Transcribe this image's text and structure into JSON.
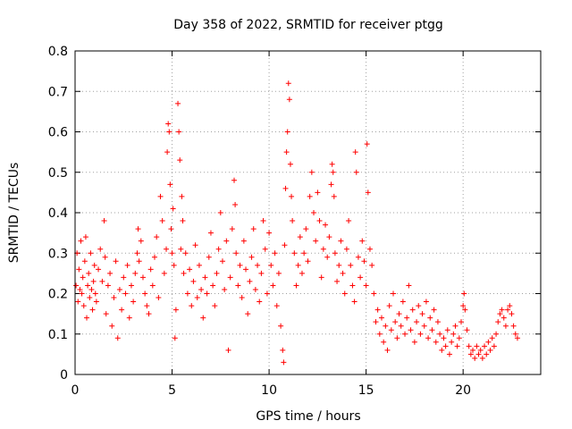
{
  "chart_data": {
    "type": "scatter",
    "title": "Day 358 of 2022, SRMTID for receiver ptgg",
    "xlabel": "GPS time / hours",
    "ylabel": "SRMTID / TECUs",
    "xlim": [
      0,
      24
    ],
    "ylim": [
      0,
      0.8
    ],
    "x_ticks": [
      {
        "value": 0,
        "label": "0"
      },
      {
        "value": 5,
        "label": "5"
      },
      {
        "value": 10,
        "label": "10"
      },
      {
        "value": 15,
        "label": "15"
      },
      {
        "value": 20,
        "label": "20"
      }
    ],
    "y_ticks": [
      {
        "value": 0,
        "label": "0"
      },
      {
        "value": 0.1,
        "label": "0.1"
      },
      {
        "value": 0.2,
        "label": "0.2"
      },
      {
        "value": 0.3,
        "label": "0.3"
      },
      {
        "value": 0.4,
        "label": "0.4"
      },
      {
        "value": 0.5,
        "label": "0.5"
      },
      {
        "value": 0.6,
        "label": "0.6"
      },
      {
        "value": 0.7,
        "label": "0.7"
      },
      {
        "value": 0.8,
        "label": "0.8"
      }
    ],
    "grid": true,
    "marker": "+",
    "series_color": "#ff0000",
    "series": [
      {
        "name": "SRMTID",
        "points": [
          [
            0.05,
            0.22
          ],
          [
            0.1,
            0.3
          ],
          [
            0.15,
            0.18
          ],
          [
            0.2,
            0.26
          ],
          [
            0.25,
            0.21
          ],
          [
            0.3,
            0.33
          ],
          [
            0.35,
            0.2
          ],
          [
            0.4,
            0.24
          ],
          [
            0.45,
            0.17
          ],
          [
            0.5,
            0.28
          ],
          [
            0.55,
            0.34
          ],
          [
            0.6,
            0.14
          ],
          [
            0.65,
            0.22
          ],
          [
            0.7,
            0.25
          ],
          [
            0.75,
            0.19
          ],
          [
            0.8,
            0.3
          ],
          [
            0.85,
            0.21
          ],
          [
            0.9,
            0.16
          ],
          [
            0.95,
            0.23
          ],
          [
            1.0,
            0.27
          ],
          [
            1.05,
            0.2
          ],
          [
            1.1,
            0.18
          ],
          [
            1.2,
            0.26
          ],
          [
            1.3,
            0.31
          ],
          [
            1.4,
            0.23
          ],
          [
            1.5,
            0.38
          ],
          [
            1.55,
            0.29
          ],
          [
            1.6,
            0.15
          ],
          [
            1.7,
            0.22
          ],
          [
            1.8,
            0.25
          ],
          [
            1.9,
            0.12
          ],
          [
            2.0,
            0.19
          ],
          [
            2.1,
            0.28
          ],
          [
            2.2,
            0.09
          ],
          [
            2.3,
            0.21
          ],
          [
            2.4,
            0.16
          ],
          [
            2.5,
            0.24
          ],
          [
            2.6,
            0.2
          ],
          [
            2.7,
            0.27
          ],
          [
            2.8,
            0.14
          ],
          [
            2.9,
            0.22
          ],
          [
            3.0,
            0.18
          ],
          [
            3.1,
            0.25
          ],
          [
            3.2,
            0.3
          ],
          [
            3.25,
            0.36
          ],
          [
            3.3,
            0.28
          ],
          [
            3.4,
            0.33
          ],
          [
            3.5,
            0.24
          ],
          [
            3.6,
            0.2
          ],
          [
            3.7,
            0.17
          ],
          [
            3.8,
            0.15
          ],
          [
            3.9,
            0.26
          ],
          [
            4.0,
            0.22
          ],
          [
            4.1,
            0.29
          ],
          [
            4.2,
            0.34
          ],
          [
            4.3,
            0.19
          ],
          [
            4.4,
            0.44
          ],
          [
            4.5,
            0.38
          ],
          [
            4.6,
            0.25
          ],
          [
            4.7,
            0.31
          ],
          [
            4.75,
            0.55
          ],
          [
            4.8,
            0.62
          ],
          [
            4.85,
            0.6
          ],
          [
            4.9,
            0.47
          ],
          [
            4.95,
            0.36
          ],
          [
            5.0,
            0.3
          ],
          [
            5.05,
            0.41
          ],
          [
            5.1,
            0.27
          ],
          [
            5.15,
            0.09
          ],
          [
            5.2,
            0.16
          ],
          [
            5.3,
            0.67
          ],
          [
            5.35,
            0.6
          ],
          [
            5.4,
            0.53
          ],
          [
            5.45,
            0.31
          ],
          [
            5.5,
            0.44
          ],
          [
            5.55,
            0.38
          ],
          [
            5.6,
            0.25
          ],
          [
            5.7,
            0.3
          ],
          [
            5.8,
            0.2
          ],
          [
            5.9,
            0.26
          ],
          [
            6.0,
            0.17
          ],
          [
            6.1,
            0.23
          ],
          [
            6.2,
            0.32
          ],
          [
            6.3,
            0.19
          ],
          [
            6.4,
            0.27
          ],
          [
            6.5,
            0.21
          ],
          [
            6.6,
            0.14
          ],
          [
            6.7,
            0.24
          ],
          [
            6.8,
            0.2
          ],
          [
            6.9,
            0.29
          ],
          [
            7.0,
            0.35
          ],
          [
            7.1,
            0.22
          ],
          [
            7.2,
            0.17
          ],
          [
            7.3,
            0.25
          ],
          [
            7.4,
            0.31
          ],
          [
            7.5,
            0.4
          ],
          [
            7.6,
            0.28
          ],
          [
            7.7,
            0.21
          ],
          [
            7.8,
            0.33
          ],
          [
            7.9,
            0.06
          ],
          [
            8.0,
            0.24
          ],
          [
            8.1,
            0.36
          ],
          [
            8.2,
            0.48
          ],
          [
            8.25,
            0.42
          ],
          [
            8.3,
            0.3
          ],
          [
            8.4,
            0.22
          ],
          [
            8.5,
            0.27
          ],
          [
            8.6,
            0.19
          ],
          [
            8.7,
            0.33
          ],
          [
            8.8,
            0.26
          ],
          [
            8.9,
            0.15
          ],
          [
            9.0,
            0.23
          ],
          [
            9.1,
            0.29
          ],
          [
            9.2,
            0.36
          ],
          [
            9.3,
            0.21
          ],
          [
            9.4,
            0.27
          ],
          [
            9.5,
            0.18
          ],
          [
            9.6,
            0.25
          ],
          [
            9.7,
            0.38
          ],
          [
            9.8,
            0.31
          ],
          [
            9.9,
            0.2
          ],
          [
            10.0,
            0.35
          ],
          [
            10.1,
            0.27
          ],
          [
            10.2,
            0.22
          ],
          [
            10.3,
            0.3
          ],
          [
            10.4,
            0.17
          ],
          [
            10.5,
            0.25
          ],
          [
            10.6,
            0.12
          ],
          [
            10.7,
            0.06
          ],
          [
            10.75,
            0.03
          ],
          [
            10.8,
            0.32
          ],
          [
            10.85,
            0.46
          ],
          [
            10.9,
            0.55
          ],
          [
            10.95,
            0.6
          ],
          [
            11.0,
            0.72
          ],
          [
            11.05,
            0.68
          ],
          [
            11.1,
            0.52
          ],
          [
            11.15,
            0.44
          ],
          [
            11.2,
            0.38
          ],
          [
            11.3,
            0.3
          ],
          [
            11.4,
            0.22
          ],
          [
            11.5,
            0.27
          ],
          [
            11.6,
            0.34
          ],
          [
            11.7,
            0.25
          ],
          [
            11.8,
            0.3
          ],
          [
            11.9,
            0.36
          ],
          [
            12.0,
            0.28
          ],
          [
            12.1,
            0.44
          ],
          [
            12.2,
            0.5
          ],
          [
            12.3,
            0.4
          ],
          [
            12.4,
            0.33
          ],
          [
            12.5,
            0.45
          ],
          [
            12.6,
            0.38
          ],
          [
            12.7,
            0.24
          ],
          [
            12.8,
            0.31
          ],
          [
            12.9,
            0.37
          ],
          [
            13.0,
            0.29
          ],
          [
            13.1,
            0.34
          ],
          [
            13.2,
            0.47
          ],
          [
            13.25,
            0.52
          ],
          [
            13.3,
            0.5
          ],
          [
            13.35,
            0.44
          ],
          [
            13.4,
            0.3
          ],
          [
            13.5,
            0.23
          ],
          [
            13.6,
            0.27
          ],
          [
            13.7,
            0.33
          ],
          [
            13.8,
            0.25
          ],
          [
            13.9,
            0.2
          ],
          [
            14.0,
            0.31
          ],
          [
            14.1,
            0.38
          ],
          [
            14.2,
            0.27
          ],
          [
            14.3,
            0.22
          ],
          [
            14.4,
            0.18
          ],
          [
            14.45,
            0.55
          ],
          [
            14.5,
            0.5
          ],
          [
            14.6,
            0.29
          ],
          [
            14.7,
            0.24
          ],
          [
            14.8,
            0.33
          ],
          [
            14.9,
            0.28
          ],
          [
            15.0,
            0.22
          ],
          [
            15.05,
            0.57
          ],
          [
            15.1,
            0.45
          ],
          [
            15.2,
            0.31
          ],
          [
            15.3,
            0.27
          ],
          [
            15.4,
            0.2
          ],
          [
            15.5,
            0.13
          ],
          [
            15.6,
            0.16
          ],
          [
            15.7,
            0.1
          ],
          [
            15.8,
            0.14
          ],
          [
            15.9,
            0.08
          ],
          [
            16.0,
            0.12
          ],
          [
            16.1,
            0.06
          ],
          [
            16.2,
            0.17
          ],
          [
            16.3,
            0.11
          ],
          [
            16.4,
            0.2
          ],
          [
            16.5,
            0.13
          ],
          [
            16.6,
            0.09
          ],
          [
            16.7,
            0.15
          ],
          [
            16.8,
            0.12
          ],
          [
            16.9,
            0.18
          ],
          [
            17.0,
            0.1
          ],
          [
            17.1,
            0.14
          ],
          [
            17.2,
            0.22
          ],
          [
            17.3,
            0.11
          ],
          [
            17.4,
            0.16
          ],
          [
            17.5,
            0.08
          ],
          [
            17.6,
            0.13
          ],
          [
            17.7,
            0.17
          ],
          [
            17.8,
            0.1
          ],
          [
            17.9,
            0.15
          ],
          [
            18.0,
            0.12
          ],
          [
            18.1,
            0.18
          ],
          [
            18.2,
            0.09
          ],
          [
            18.3,
            0.14
          ],
          [
            18.4,
            0.11
          ],
          [
            18.5,
            0.16
          ],
          [
            18.6,
            0.08
          ],
          [
            18.7,
            0.13
          ],
          [
            18.8,
            0.1
          ],
          [
            18.9,
            0.06
          ],
          [
            19.0,
            0.09
          ],
          [
            19.1,
            0.07
          ],
          [
            19.2,
            0.11
          ],
          [
            19.3,
            0.05
          ],
          [
            19.4,
            0.08
          ],
          [
            19.5,
            0.1
          ],
          [
            19.6,
            0.12
          ],
          [
            19.7,
            0.07
          ],
          [
            19.8,
            0.09
          ],
          [
            19.9,
            0.13
          ],
          [
            20.0,
            0.17
          ],
          [
            20.05,
            0.2
          ],
          [
            20.1,
            0.16
          ],
          [
            20.2,
            0.11
          ],
          [
            20.3,
            0.07
          ],
          [
            20.4,
            0.05
          ],
          [
            20.5,
            0.06
          ],
          [
            20.6,
            0.04
          ],
          [
            20.7,
            0.07
          ],
          [
            20.8,
            0.05
          ],
          [
            20.9,
            0.06
          ],
          [
            21.0,
            0.04
          ],
          [
            21.1,
            0.07
          ],
          [
            21.2,
            0.05
          ],
          [
            21.3,
            0.08
          ],
          [
            21.4,
            0.06
          ],
          [
            21.5,
            0.09
          ],
          [
            21.6,
            0.07
          ],
          [
            21.7,
            0.1
          ],
          [
            21.8,
            0.13
          ],
          [
            21.9,
            0.15
          ],
          [
            22.0,
            0.16
          ],
          [
            22.1,
            0.14
          ],
          [
            22.2,
            0.12
          ],
          [
            22.3,
            0.16
          ],
          [
            22.4,
            0.17
          ],
          [
            22.5,
            0.15
          ],
          [
            22.6,
            0.12
          ],
          [
            22.7,
            0.1
          ],
          [
            22.8,
            0.09
          ]
        ]
      }
    ]
  }
}
